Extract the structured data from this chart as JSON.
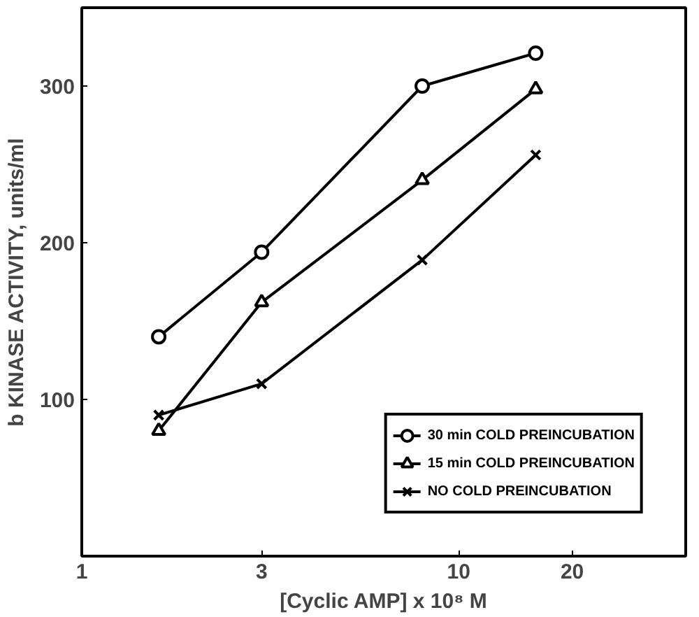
{
  "chart_data": {
    "type": "line",
    "xlabel": "[Cyclic AMP] x 10⁸ M",
    "ylabel": "b KINASE ACTIVITY, units/ml",
    "x": [
      1.6,
      3,
      8,
      16
    ],
    "series": [
      {
        "name": "30 min COLD PREINCUBATION",
        "color": "#000000",
        "marker": "circle",
        "values": [
          140,
          194,
          300,
          321
        ]
      },
      {
        "name": "15 min COLD PREINCUBATION",
        "color": "#000000",
        "marker": "triangle",
        "values": [
          80,
          162,
          240,
          298
        ]
      },
      {
        "name": "NO COLD PREINCUBATION",
        "color": "#000000",
        "marker": "cross",
        "values": [
          90,
          110,
          189,
          256
        ]
      }
    ],
    "log": "x",
    "xlim": [
      1,
      40
    ],
    "xticks": [
      1,
      3,
      10,
      20
    ],
    "ylim": [
      0,
      350
    ],
    "yticks": [
      {
        "value": 0,
        "label": null
      },
      100,
      200,
      300
    ],
    "grid": false,
    "legend": "bottom right",
    "line_style": "solid"
  }
}
